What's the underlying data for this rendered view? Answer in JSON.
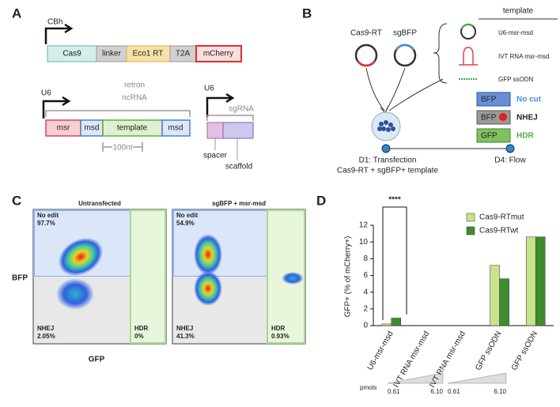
{
  "panel_a": {
    "label": "A",
    "promoter1": "CBh",
    "construct1": [
      "Cas9",
      "linker",
      "Eco1 RT",
      "T2A",
      "mCherry"
    ],
    "promoter2": "U6",
    "retron_label": [
      "retron",
      "ncRNA"
    ],
    "construct2": [
      "msr",
      "msd",
      "template",
      "msd"
    ],
    "length_label": "100nt",
    "promoter3": "U6",
    "sgrna_label": "sgRNA",
    "spacer": "spacer",
    "scaffold": "scaffold"
  },
  "panel_b": {
    "label": "B",
    "cas9": "Cas9-RT",
    "sgbfp": "sgBFP",
    "template_header": "template",
    "templates": [
      "U6-msr-msd",
      "IVT RNA msr-msd",
      "GFP ssODN"
    ],
    "outcomes": [
      {
        "box": "BFP",
        "text": "No cut"
      },
      {
        "box": "BFP",
        "text": "NHEJ"
      },
      {
        "box": "GFP",
        "text": "HDR"
      }
    ],
    "day1": "D1: Transfection",
    "day1_detail": "Cas9-RT + sgBFP+ template",
    "day4": "D4: Flow"
  },
  "panel_c": {
    "label": "C",
    "y_label": "BFP",
    "x_label": "GFP",
    "plots": [
      {
        "title": "Untransfected",
        "no_edit": [
          "No edit",
          "97.7%"
        ],
        "nhej": [
          "NHEJ",
          "2.05%"
        ],
        "hdr": [
          "HDR",
          "0%"
        ]
      },
      {
        "title": "sgBFP + msr-msd",
        "no_edit": [
          "No edit",
          "54.9%"
        ],
        "nhej": [
          "NHEJ",
          "41.3%"
        ],
        "hdr": [
          "HDR",
          "0.93%"
        ]
      }
    ]
  },
  "chart_data": {
    "type": "bar",
    "panel_label": "D",
    "ylabel": "GFP+ (% of mCherry+)",
    "categories": [
      "U6-msr-msd",
      "IVT RNA msr-msd",
      "IVT RNA msr-msd",
      "GFP ssODN",
      "GFP ssODN"
    ],
    "series": [
      {
        "name": "Cas9-RTmut",
        "color": "#c8e38c",
        "values": [
          0.2,
          0,
          0,
          7.2,
          10.6
        ]
      },
      {
        "name": "Cas9-RTwt",
        "color": "#3f8c2e",
        "values": [
          0.9,
          0,
          0,
          5.6,
          10.6
        ]
      }
    ],
    "ylim": [
      0,
      12
    ],
    "yticks": [
      0,
      2,
      4,
      6,
      8,
      10,
      12
    ],
    "annotation": "****",
    "dose_scale": {
      "label": "pmols",
      "ticks": [
        "0.61",
        "6.10",
        "0.61",
        "6.10"
      ]
    }
  }
}
